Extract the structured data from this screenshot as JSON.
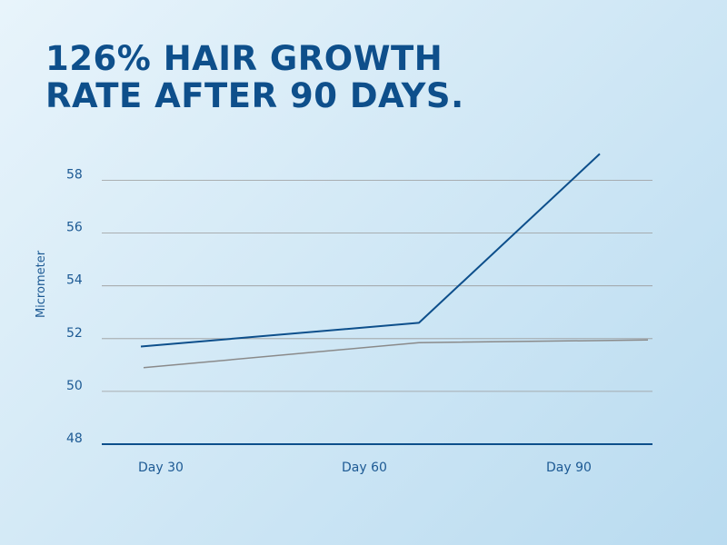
{
  "title": {
    "line1": "126% HAIR GROWTH",
    "line2": "RATE AFTER 90 DAYS."
  },
  "chart_data": {
    "type": "line",
    "title": "126% HAIR GROWTH RATE AFTER 90 DAYS.",
    "xlabel": "",
    "ylabel": "Micrometer",
    "categories": [
      "Day 30",
      "Day 60",
      "Day 90"
    ],
    "ylim": [
      48,
      58
    ],
    "yticks": [
      48,
      50,
      52,
      54,
      56,
      58
    ],
    "grid": true,
    "colors": {
      "series1": "#0d4f8b",
      "series2": "#8a8a8a",
      "grid": "#9a9a9a",
      "baseline": "#0d4f8b",
      "text": "#1d5a94"
    },
    "series": [
      {
        "values": [
          51.7,
          52.6,
          59.0
        ]
      },
      {
        "values": [
          50.9,
          51.85,
          51.95
        ]
      }
    ]
  }
}
